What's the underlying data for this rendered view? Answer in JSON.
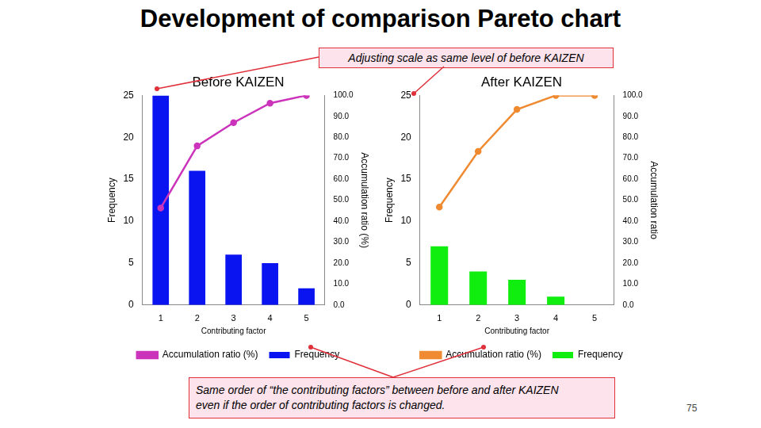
{
  "title": "Development of comparison Pareto chart",
  "annotations": [
    {
      "lines": [
        "Adjusting scale as same level of before KAIZEN"
      ]
    },
    {
      "lines": [
        "Same order of “the contributing factors” between before and after KAIZEN",
        "even if the order of contributing factors is changed."
      ]
    }
  ],
  "page_number": 75,
  "chart_data": [
    {
      "type": "bar",
      "title": "Before KAIZEN",
      "categories": [
        1,
        2,
        3,
        4,
        5
      ],
      "x_label": "Contributing factor",
      "y_label": "Frequency",
      "y2_label": "Accumulation ratio (%)",
      "series": [
        {
          "name": "Frequency",
          "type": "bar",
          "color": "#0a14f0",
          "values": [
            25,
            16,
            6,
            5,
            2
          ]
        },
        {
          "name": "Accumulation ratio (%)",
          "type": "line",
          "axis": "y2",
          "color": "#cc33bb",
          "marker": "circle",
          "line_style": "solid",
          "values": [
            46.3,
            75.9,
            87.0,
            96.3,
            100.0
          ]
        }
      ],
      "ylim": [
        0,
        25
      ],
      "yticks": [
        0,
        5,
        10,
        15,
        20,
        25
      ],
      "y2lim": [
        0,
        100
      ],
      "y2ticks": [
        {
          "value": 0,
          "label": "0.0"
        },
        {
          "value": 10,
          "label": "10.0"
        },
        {
          "value": 20,
          "label": "20.0"
        },
        {
          "value": 30,
          "label": "30.0"
        },
        {
          "value": 40,
          "label": "40.0"
        },
        {
          "value": 50,
          "label": "50.0"
        },
        {
          "value": 60,
          "label": "60.0"
        },
        {
          "value": 70,
          "label": "70.0"
        },
        {
          "value": 80,
          "label": "80.0"
        },
        {
          "value": 90,
          "label": "90.0"
        },
        {
          "value": 100,
          "label": "100.0"
        }
      ],
      "grid": false,
      "legend": "bottom"
    },
    {
      "type": "bar",
      "title": "After KAIZEN",
      "categories": [
        1,
        2,
        3,
        4,
        5
      ],
      "x_label": "Contributing factor",
      "y_label": "Frequency",
      "y2_label": "Accumulation ratio",
      "series": [
        {
          "name": "Frequency",
          "type": "bar",
          "color": "#10ee10",
          "values": [
            7,
            4,
            3,
            1,
            0
          ]
        },
        {
          "name": "Accumulation ratio (%)",
          "type": "line",
          "axis": "y2",
          "color": "#f08a30",
          "marker": "circle",
          "line_style": "solid",
          "values": [
            46.7,
            73.3,
            93.3,
            100.0,
            100.0
          ]
        }
      ],
      "ylim": [
        0,
        25
      ],
      "yticks": [
        0,
        5,
        10,
        15,
        20,
        25
      ],
      "y2lim": [
        0,
        100
      ],
      "y2ticks": [
        {
          "value": 0,
          "label": "0.0"
        },
        {
          "value": 10,
          "label": "10.0"
        },
        {
          "value": 20,
          "label": "20.0"
        },
        {
          "value": 30,
          "label": "30.0"
        },
        {
          "value": 40,
          "label": "40.0"
        },
        {
          "value": 50,
          "label": "50.0"
        },
        {
          "value": 60,
          "label": "60.0"
        },
        {
          "value": 70,
          "label": "70.0"
        },
        {
          "value": 80,
          "label": "80.0"
        },
        {
          "value": 90,
          "label": "90.0"
        },
        {
          "value": 100,
          "label": "100.0"
        }
      ],
      "grid": false,
      "legend": "bottom"
    }
  ]
}
